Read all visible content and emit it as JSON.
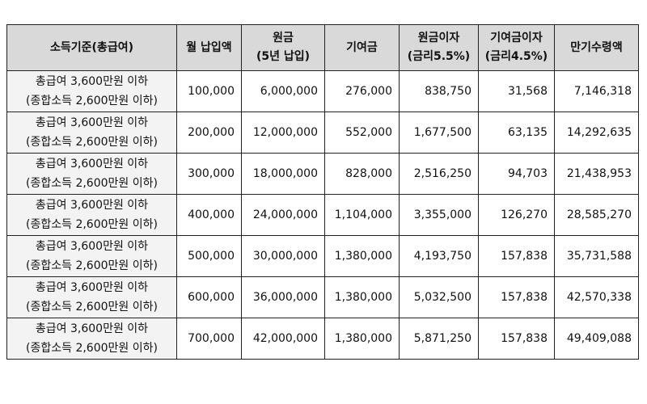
{
  "headers": [
    {
      "l1": "소득기준(총급여)",
      "l2": ""
    },
    {
      "l1": "월 납입액",
      "l2": ""
    },
    {
      "l1": "원금",
      "l2": "(5년 납입)"
    },
    {
      "l1": "기여금",
      "l2": ""
    },
    {
      "l1": "원금이자",
      "l2": "(금리5.5%)"
    },
    {
      "l1": "기여금이자",
      "l2": "(금리4.5%)"
    },
    {
      "l1": "만기수령액",
      "l2": ""
    }
  ],
  "rows": [
    {
      "cat1": "총급여 3,600만원 이하",
      "cat2": "(종합소득 2,600만원 이하)",
      "monthly": "100,000",
      "principal": "6,000,000",
      "contribution": "276,000",
      "principal_interest": "838,750",
      "contribution_interest": "31,568",
      "maturity": "7,146,318"
    },
    {
      "cat1": "총급여 3,600만원 이하",
      "cat2": "(종합소득 2,600만원 이하)",
      "monthly": "200,000",
      "principal": "12,000,000",
      "contribution": "552,000",
      "principal_interest": "1,677,500",
      "contribution_interest": "63,135",
      "maturity": "14,292,635"
    },
    {
      "cat1": "총급여 3,600만원 이하",
      "cat2": "(종합소득 2,600만원 이하)",
      "monthly": "300,000",
      "principal": "18,000,000",
      "contribution": "828,000",
      "principal_interest": "2,516,250",
      "contribution_interest": "94,703",
      "maturity": "21,438,953"
    },
    {
      "cat1": "총급여 3,600만원 이하",
      "cat2": "(종합소득 2,600만원 이하)",
      "monthly": "400,000",
      "principal": "24,000,000",
      "contribution": "1,104,000",
      "principal_interest": "3,355,000",
      "contribution_interest": "126,270",
      "maturity": "28,585,270"
    },
    {
      "cat1": "총급여 3,600만원 이하",
      "cat2": "(종합소득 2,600만원 이하)",
      "monthly": "500,000",
      "principal": "30,000,000",
      "contribution": "1,380,000",
      "principal_interest": "4,193,750",
      "contribution_interest": "157,838",
      "maturity": "35,731,588"
    },
    {
      "cat1": "총급여 3,600만원 이하",
      "cat2": "(종합소득 2,600만원 이하)",
      "monthly": "600,000",
      "principal": "36,000,000",
      "contribution": "1,380,000",
      "principal_interest": "5,032,500",
      "contribution_interest": "157,838",
      "maturity": "42,570,338"
    },
    {
      "cat1": "총급여 3,600만원 이하",
      "cat2": "(종합소득 2,600만원 이하)",
      "monthly": "700,000",
      "principal": "42,000,000",
      "contribution": "1,380,000",
      "principal_interest": "5,871,250",
      "contribution_interest": "157,838",
      "maturity": "49,409,088"
    }
  ]
}
